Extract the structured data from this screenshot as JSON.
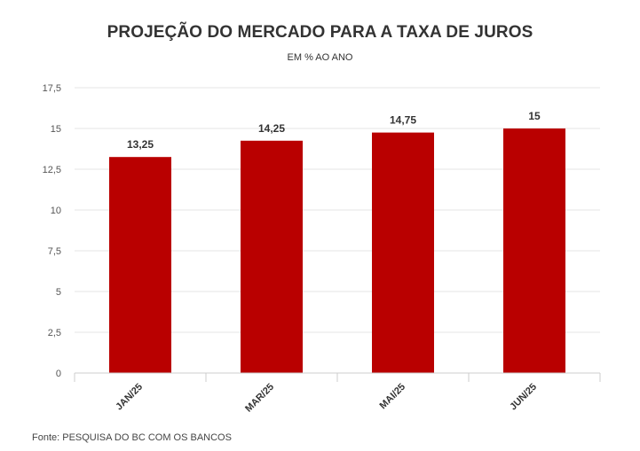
{
  "title": "PROJEÇÃO DO MERCADO PARA A TAXA DE JUROS",
  "subtitle": "EM % AO ANO",
  "source": "Fonte: PESQUISA DO BC COM OS BANCOS",
  "colors": {
    "bar": "#b90000",
    "grid": "#e6e6e6",
    "axis": "#cccccc",
    "text": "#333333"
  },
  "chart_data": {
    "type": "bar",
    "title": "PROJEÇÃO DO MERCADO PARA A TAXA DE JUROS",
    "subtitle": "EM % AO ANO",
    "categories": [
      "JAN/25",
      "MAR/25",
      "MAI/25",
      "JUN/25"
    ],
    "values": [
      13.25,
      14.25,
      14.75,
      15
    ],
    "value_labels": [
      "13,25",
      "14,25",
      "14,75",
      "15"
    ],
    "xlabel": "",
    "ylabel": "",
    "ylim": [
      0,
      17.5
    ],
    "yticks": [
      0,
      2.5,
      5,
      7.5,
      10,
      12.5,
      15,
      17.5
    ],
    "ytick_labels": [
      "0",
      "2,5",
      "5",
      "7,5",
      "10",
      "12,5",
      "15",
      "17,5"
    ],
    "grid": true,
    "legend": "none"
  }
}
